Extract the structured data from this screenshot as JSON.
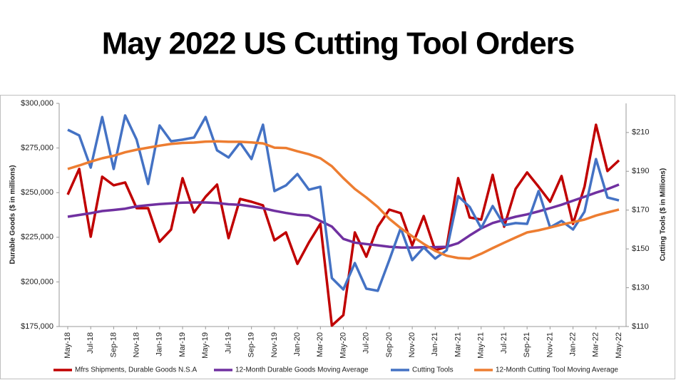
{
  "chart_data": {
    "type": "line",
    "title": "May 2022 US Cutting Tool Orders",
    "y_label": "Durable Goods ($ in millions)",
    "y2_label": "Cutting Tools ($ in Millions)",
    "categories": [
      "May-18",
      null,
      "Jul-18",
      null,
      "Sep-18",
      null,
      "Nov-18",
      null,
      "Jan-19",
      null,
      "Mar-19",
      null,
      "May-19",
      null,
      "Jul-19",
      null,
      "Sep-19",
      null,
      "Nov-19",
      null,
      "Jan-20",
      null,
      "Mar-20",
      null,
      "May-20",
      null,
      "Jul-20",
      null,
      "Sep-20",
      null,
      "Nov-20",
      null,
      "Jan-21",
      null,
      "Mar-21",
      null,
      "May-21",
      null,
      "Jul-21",
      null,
      "Sep-21",
      null,
      "Nov-21",
      null,
      "Jan-22",
      null,
      "Mar-22",
      null,
      "May-22"
    ],
    "ylim": [
      175000,
      300000
    ],
    "yticks": [
      {
        "value": 175000,
        "label": "$175,000"
      },
      {
        "value": 200000,
        "label": "$200,000"
      },
      {
        "value": 225000,
        "label": "$225,000"
      },
      {
        "value": 250000,
        "label": "$250,000"
      },
      {
        "value": 275000,
        "label": "$275,000"
      },
      {
        "value": 300000,
        "label": "$300,000"
      }
    ],
    "y2lim": [
      110,
      225
    ],
    "y2ticks": [
      {
        "value": 110,
        "label": "$110"
      },
      {
        "value": 130,
        "label": "$130"
      },
      {
        "value": 150,
        "label": "$150"
      },
      {
        "value": 170,
        "label": "$170"
      },
      {
        "value": 190,
        "label": "$190"
      },
      {
        "value": 210,
        "label": "$210"
      }
    ],
    "grid": false,
    "legend": "bottom",
    "series": [
      {
        "name": "Mfrs Shipments, Durable Goods N.S.A",
        "color": "#c00000",
        "axis": "y",
        "values": [
          248900,
          263300,
          225300,
          258900,
          254100,
          255700,
          241300,
          241300,
          222500,
          229300,
          258100,
          238900,
          247700,
          254500,
          224500,
          246500,
          244900,
          242900,
          223300,
          227700,
          210100,
          222100,
          232500,
          175500,
          181400,
          227700,
          214100,
          230900,
          240500,
          238500,
          220500,
          236900,
          217700,
          219700,
          258100,
          236100,
          234900,
          260000,
          230900,
          252100,
          261300,
          253300,
          244900,
          259300,
          232500,
          253300,
          288000,
          262100,
          268100
        ]
      },
      {
        "name": "12-Month Durable Goods Moving Average",
        "color": "#7030a0",
        "axis": "y",
        "values": [
          236500,
          237500,
          238500,
          239700,
          240300,
          241000,
          242300,
          243000,
          243600,
          244000,
          244400,
          244500,
          244500,
          244200,
          243500,
          243200,
          242300,
          241300,
          239800,
          238600,
          237600,
          237200,
          234100,
          231000,
          224100,
          222000,
          221200,
          220500,
          219700,
          219300,
          219200,
          219400,
          219500,
          219700,
          221700,
          226000,
          230000,
          233000,
          234800,
          236500,
          237800,
          239500,
          241300,
          243200,
          245500,
          247700,
          250000,
          252000,
          254500
        ]
      },
      {
        "name": "Cutting Tools",
        "color": "#4472c4",
        "axis": "y2",
        "values": [
          211.4,
          208.5,
          191.9,
          218.0,
          191.2,
          218.8,
          206.3,
          183.5,
          213.6,
          205.5,
          206.3,
          207.4,
          218.0,
          200.8,
          197.1,
          204.8,
          196.3,
          214.0,
          179.8,
          182.7,
          188.6,
          180.5,
          182.0,
          135.0,
          129.1,
          142.7,
          129.5,
          128.4,
          144.2,
          160.7,
          144.2,
          150.8,
          145.0,
          149.3,
          177.2,
          171.7,
          160.7,
          172.1,
          162.2,
          163.3,
          162.9,
          179.8,
          161.1,
          164.4,
          160.0,
          169.2,
          196.3,
          176.5,
          175.0
        ]
      },
      {
        "name": "12-Month Cutting Tool Moving Average",
        "color": "#ed7d31",
        "axis": "y2",
        "values": [
          191.2,
          193.0,
          195.0,
          196.7,
          198.0,
          199.8,
          201.1,
          202.2,
          203.2,
          204.1,
          204.6,
          204.8,
          205.3,
          205.4,
          205.2,
          205.2,
          204.9,
          204.4,
          202.2,
          202.0,
          200.3,
          198.8,
          196.7,
          192.6,
          186.5,
          180.9,
          176.5,
          171.6,
          165.5,
          160.7,
          156.5,
          152.6,
          149.0,
          146.5,
          145.3,
          145.0,
          147.5,
          150.4,
          153.2,
          155.9,
          158.5,
          159.6,
          161.0,
          162.5,
          163.8,
          165.1,
          167.2,
          168.8,
          170.3
        ]
      }
    ]
  }
}
